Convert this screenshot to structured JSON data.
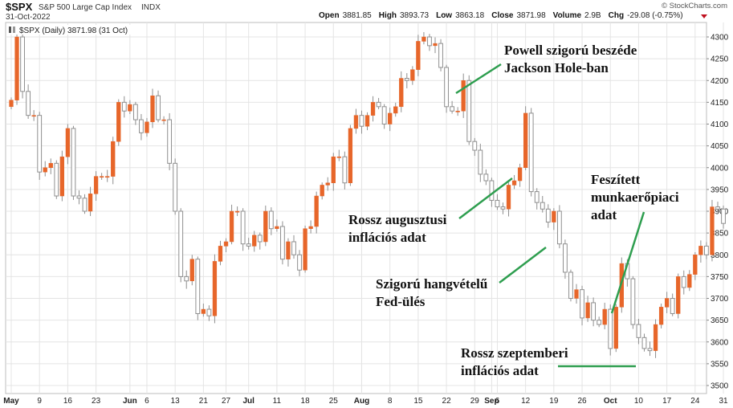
{
  "header": {
    "symbol": "$SPX",
    "name": "S&P 500 Large Cap Index",
    "exchange": "INDX",
    "date": "31-Oct-2022",
    "credit": "© StockCharts.com",
    "stats": [
      {
        "label": "Open",
        "value": "3881.85"
      },
      {
        "label": "High",
        "value": "3893.73"
      },
      {
        "label": "Low",
        "value": "3863.18"
      },
      {
        "label": "Close",
        "value": "3871.98"
      },
      {
        "label": "Volume",
        "value": "2.9B"
      },
      {
        "label": "Chg",
        "value": "-29.08 (-0.75%)"
      }
    ],
    "legend": "$SPX (Daily) 3871.98 (31 Oct)"
  },
  "colors": {
    "up": "#e7662a",
    "down_fill": "#ffffff",
    "down_stroke": "#8f8f8f",
    "wick": "#8f8f8f",
    "grid": "#e4e4e4",
    "annotation_line": "#2e9e4f",
    "chg_arrow": "#c0101f"
  },
  "chart_data": {
    "type": "candlestick",
    "title": "$SPX (Daily) 3871.98 (31 Oct)",
    "ylim": [
      3490,
      4320
    ],
    "y_ticks": [
      3500,
      3550,
      3600,
      3650,
      3700,
      3750,
      3800,
      3850,
      3900,
      3950,
      4000,
      4050,
      4100,
      4150,
      4200,
      4250,
      4300
    ],
    "x_labels": [
      {
        "label": "May",
        "index": 0,
        "bold": true
      },
      {
        "label": "9",
        "index": 5
      },
      {
        "label": "16",
        "index": 10
      },
      {
        "label": "23",
        "index": 15
      },
      {
        "label": "Jun",
        "index": 21,
        "bold": true
      },
      {
        "label": "6",
        "index": 24
      },
      {
        "label": "13",
        "index": 29
      },
      {
        "label": "21",
        "index": 34
      },
      {
        "label": "27",
        "index": 38
      },
      {
        "label": "Jul",
        "index": 42,
        "bold": true
      },
      {
        "label": "11",
        "index": 47
      },
      {
        "label": "18",
        "index": 52
      },
      {
        "label": "25",
        "index": 57
      },
      {
        "label": "Aug",
        "index": 62,
        "bold": true
      },
      {
        "label": "8",
        "index": 67
      },
      {
        "label": "15",
        "index": 72
      },
      {
        "label": "22",
        "index": 77
      },
      {
        "label": "29",
        "index": 82
      },
      {
        "label": "Sep",
        "index": 85,
        "bold": true
      },
      {
        "label": "6",
        "index": 86
      },
      {
        "label": "12",
        "index": 91
      },
      {
        "label": "19",
        "index": 96
      },
      {
        "label": "26",
        "index": 101
      },
      {
        "label": "Oct",
        "index": 106,
        "bold": true
      },
      {
        "label": "10",
        "index": 111
      },
      {
        "label": "17",
        "index": 116
      },
      {
        "label": "24",
        "index": 121
      },
      {
        "label": "31",
        "index": 126
      }
    ],
    "closes": [
      4155,
      4300,
      4175,
      4120,
      4120,
      3990,
      4000,
      4010,
      3935,
      4025,
      4090,
      3935,
      3930,
      3900,
      3940,
      3980,
      3980,
      3980,
      4060,
      4150,
      4130,
      4145,
      4110,
      4080,
      4105,
      4165,
      4110,
      4110,
      4010,
      3900,
      3750,
      3740,
      3790,
      3665,
      3675,
      3660,
      3785,
      3820,
      3830,
      3900,
      3900,
      3825,
      3820,
      3845,
      3830,
      3900,
      3860,
      3865,
      3790,
      3830,
      3800,
      3765,
      3860,
      3865,
      3935,
      3960,
      3965,
      4025,
      4025,
      3965,
      4090,
      4120,
      4095,
      4120,
      4150,
      4140,
      4100,
      4125,
      4140,
      4205,
      4200,
      4225,
      4290,
      4300,
      4280,
      4285,
      4230,
      4140,
      4130,
      4130,
      4200,
      4060,
      4040,
      3985,
      3970,
      3925,
      3910,
      3905,
      3960,
      3970,
      4000,
      4125,
      3945,
      3920,
      3905,
      3875,
      3900,
      3825,
      3760,
      3700,
      3720,
      3655,
      3690,
      3650,
      3640,
      3675,
      3585,
      3680,
      3780,
      3745,
      3640,
      3610,
      3585,
      3580,
      3640,
      3680,
      3700,
      3665,
      3750,
      3725,
      3755,
      3800,
      3820,
      3800,
      3910,
      3905,
      3872
    ]
  },
  "annotations": [
    {
      "id": "powell",
      "lines": [
        "Powell szigorú beszéde",
        "Jackson Hole-ban"
      ]
    },
    {
      "id": "aug-cpi",
      "lines": [
        "Rossz augusztusi",
        "inflációs adat"
      ]
    },
    {
      "id": "fed",
      "lines": [
        "Szigorú hangvételű",
        "Fed-ülés"
      ]
    },
    {
      "id": "labor",
      "lines": [
        "Feszített",
        "munkaerőpiaci",
        "adat"
      ]
    },
    {
      "id": "sep-cpi",
      "lines": [
        "Rossz szeptemberi",
        "inflációs adat"
      ]
    }
  ]
}
